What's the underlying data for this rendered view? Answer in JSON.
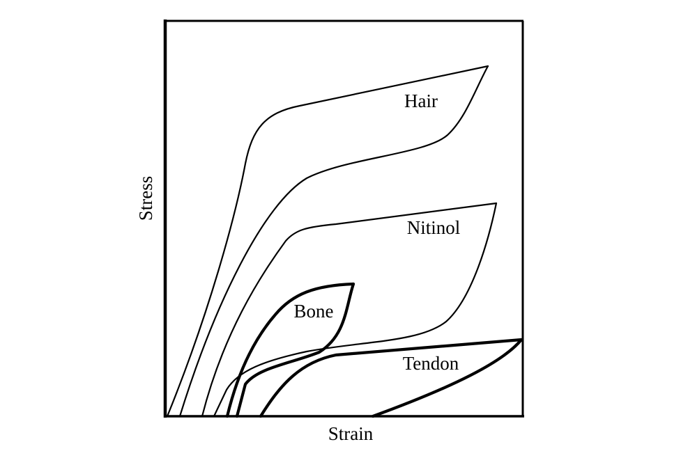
{
  "axes": {
    "x_label": "Strain",
    "y_label": "Stress"
  },
  "curves": {
    "hair": "Hair",
    "nitinol": "Nitinol",
    "bone": "Bone",
    "tendon": "Tendon"
  }
}
